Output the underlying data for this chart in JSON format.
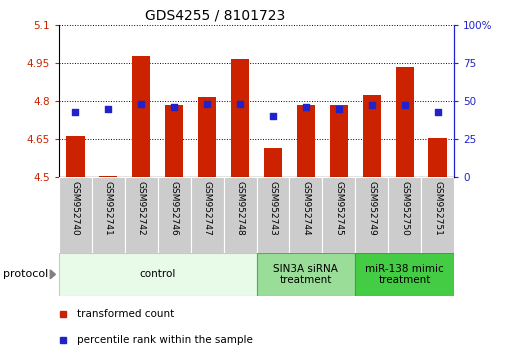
{
  "title": "GDS4255 / 8101723",
  "samples": [
    "GSM952740",
    "GSM952741",
    "GSM952742",
    "GSM952746",
    "GSM952747",
    "GSM952748",
    "GSM952743",
    "GSM952744",
    "GSM952745",
    "GSM952749",
    "GSM952750",
    "GSM952751"
  ],
  "transformed_counts": [
    4.66,
    4.505,
    4.975,
    4.785,
    4.815,
    4.965,
    4.615,
    4.785,
    4.785,
    4.825,
    4.935,
    4.655
  ],
  "percentile_ranks": [
    43,
    45,
    48,
    46,
    48,
    48,
    40,
    46,
    45,
    47,
    47,
    43
  ],
  "bar_bottom": 4.5,
  "ylim_left": [
    4.5,
    5.1
  ],
  "ylim_right": [
    0,
    100
  ],
  "yticks_left": [
    4.5,
    4.65,
    4.8,
    4.95,
    5.1
  ],
  "yticks_right": [
    0,
    25,
    50,
    75,
    100
  ],
  "ytick_labels_left": [
    "4.5",
    "4.65",
    "4.8",
    "4.95",
    "5.1"
  ],
  "ytick_labels_right": [
    "0",
    "25",
    "50",
    "75",
    "100%"
  ],
  "bar_color": "#cc2200",
  "dot_color": "#2222cc",
  "bar_width": 0.55,
  "group_boundaries": [
    {
      "start": 0,
      "end": 5,
      "label": "control",
      "facecolor": "#e8fae8",
      "edgecolor": "#aaddaa"
    },
    {
      "start": 6,
      "end": 8,
      "label": "SIN3A siRNA\ntreatment",
      "facecolor": "#99dd99",
      "edgecolor": "#55aa55"
    },
    {
      "start": 9,
      "end": 11,
      "label": "miR-138 mimic\ntreatment",
      "facecolor": "#44cc44",
      "edgecolor": "#33aa33"
    }
  ],
  "legend_items": [
    {
      "label": "transformed count",
      "color": "#cc2200"
    },
    {
      "label": "percentile rank within the sample",
      "color": "#2222cc"
    }
  ],
  "grid_linestyle": "dotted",
  "grid_color": "black",
  "grid_linewidth": 0.7,
  "title_fontsize": 10,
  "tick_fontsize": 7.5,
  "sample_fontsize": 6.5,
  "label_fontsize": 8
}
